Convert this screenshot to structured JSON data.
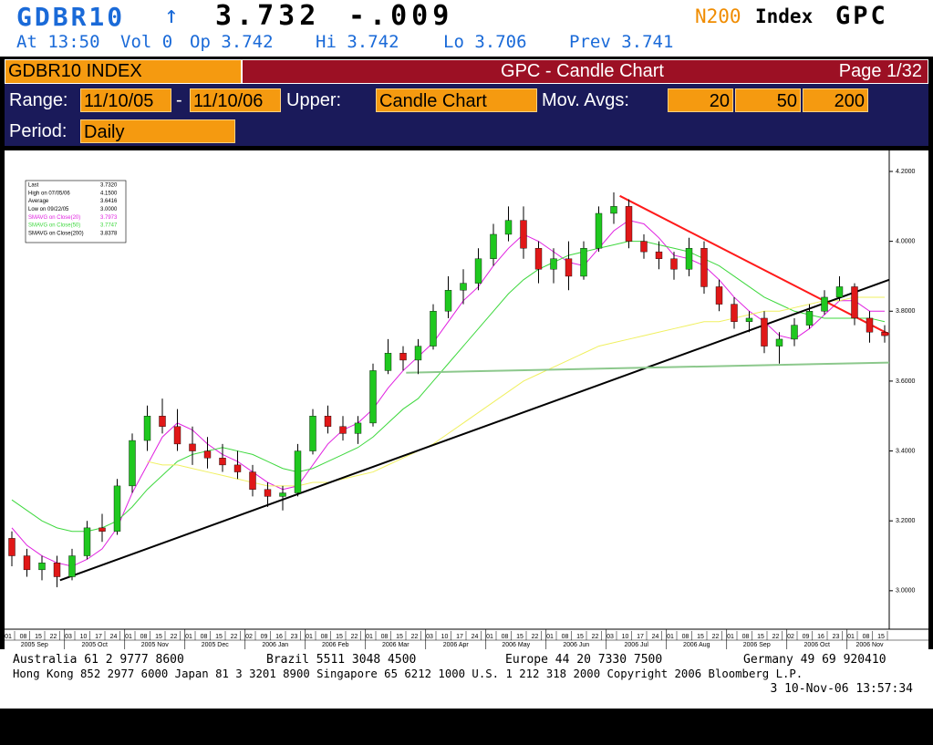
{
  "header": {
    "ticker": "GDBR10",
    "arrow": "↑",
    "price": "3.732",
    "change": "-.009",
    "source": "N200",
    "market": "Index",
    "function": "GPC",
    "quote": [
      "At 13:50",
      "Vol 0",
      "Op 3.742",
      "Hi 3.742",
      "Lo 3.706",
      "Prev 3.741"
    ]
  },
  "titlebar": {
    "security": "GDBR10 INDEX",
    "title": "GPC - Candle Chart",
    "page": "Page 1/32"
  },
  "controls": {
    "range_label": "Range:",
    "start": "11/10/05",
    "dash": "-",
    "end": "11/10/06",
    "upper_label": "Upper:",
    "upper": "Candle Chart",
    "mavg_label": "Mov. Avgs:",
    "mavgs": [
      "20",
      "50",
      "200"
    ],
    "period_label": "Period:",
    "period": "Daily"
  },
  "chart_data": {
    "type": "candlestick",
    "categories": [
      "01",
      "08",
      "15",
      "22",
      "03",
      "10",
      "17",
      "24",
      "01",
      "08",
      "15",
      "22",
      "01",
      "08",
      "15",
      "22",
      "02",
      "09",
      "16",
      "23",
      "01",
      "08",
      "15",
      "22",
      "01",
      "08",
      "15",
      "22",
      "03",
      "10",
      "17",
      "24",
      "01",
      "08",
      "15",
      "22",
      "01",
      "08",
      "15",
      "22",
      "03",
      "10",
      "17",
      "24",
      "01",
      "08",
      "15",
      "22",
      "01",
      "08",
      "15",
      "22",
      "02",
      "09",
      "16",
      "23",
      "01",
      "08",
      "15"
    ],
    "months": [
      "2005 Sep",
      "2005 Oct",
      "2005 Nov",
      "2005 Dec",
      "2006 Jan",
      "2006 Feb",
      "2006 Mar",
      "2006 Apr",
      "2006 May",
      "2006 Jun",
      "2006 Jul",
      "2006 Aug",
      "2006 Sep",
      "2006 Oct",
      "2006 Nov"
    ],
    "open": [
      3.15,
      3.1,
      3.06,
      3.08,
      3.04,
      3.1,
      3.18,
      3.17,
      3.3,
      3.43,
      3.5,
      3.47,
      3.42,
      3.4,
      3.38,
      3.36,
      3.34,
      3.29,
      3.27,
      3.28,
      3.4,
      3.5,
      3.47,
      3.45,
      3.48,
      3.63,
      3.68,
      3.66,
      3.7,
      3.8,
      3.86,
      3.88,
      3.95,
      4.02,
      4.06,
      3.98,
      3.92,
      3.95,
      3.9,
      3.98,
      4.08,
      4.1,
      4.0,
      3.97,
      3.95,
      3.92,
      3.98,
      3.87,
      3.82,
      3.77,
      3.78,
      3.7,
      3.72,
      3.76,
      3.8,
      3.84,
      3.87,
      3.78,
      3.74
    ],
    "high": [
      3.17,
      3.12,
      3.1,
      3.1,
      3.12,
      3.2,
      3.22,
      3.32,
      3.45,
      3.53,
      3.55,
      3.52,
      3.47,
      3.44,
      3.42,
      3.4,
      3.36,
      3.31,
      3.3,
      3.42,
      3.52,
      3.53,
      3.5,
      3.5,
      3.65,
      3.72,
      3.7,
      3.72,
      3.82,
      3.9,
      3.92,
      3.98,
      4.05,
      4.1,
      4.1,
      4.0,
      3.98,
      4.0,
      4.0,
      4.1,
      4.14,
      4.12,
      4.02,
      4.0,
      3.97,
      4.01,
      4.0,
      3.89,
      3.84,
      3.8,
      3.8,
      3.74,
      3.78,
      3.82,
      3.86,
      3.9,
      3.88,
      3.8,
      3.76
    ],
    "low": [
      3.07,
      3.04,
      3.03,
      3.01,
      3.03,
      3.09,
      3.14,
      3.16,
      3.28,
      3.4,
      3.45,
      3.4,
      3.36,
      3.35,
      3.34,
      3.32,
      3.27,
      3.24,
      3.23,
      3.27,
      3.39,
      3.45,
      3.43,
      3.42,
      3.47,
      3.62,
      3.63,
      3.62,
      3.69,
      3.78,
      3.82,
      3.86,
      3.93,
      4.0,
      3.95,
      3.88,
      3.88,
      3.86,
      3.89,
      3.97,
      4.05,
      3.98,
      3.95,
      3.92,
      3.89,
      3.9,
      3.85,
      3.8,
      3.75,
      3.74,
      3.68,
      3.65,
      3.7,
      3.75,
      3.79,
      3.83,
      3.76,
      3.71,
      3.71
    ],
    "close": [
      3.1,
      3.06,
      3.08,
      3.04,
      3.1,
      3.18,
      3.17,
      3.3,
      3.43,
      3.5,
      3.47,
      3.42,
      3.4,
      3.38,
      3.36,
      3.34,
      3.29,
      3.27,
      3.28,
      3.4,
      3.5,
      3.47,
      3.45,
      3.48,
      3.63,
      3.68,
      3.66,
      3.7,
      3.8,
      3.86,
      3.88,
      3.95,
      4.02,
      4.06,
      3.98,
      3.92,
      3.95,
      3.9,
      3.98,
      4.08,
      4.1,
      4.0,
      3.97,
      3.95,
      3.92,
      3.98,
      3.87,
      3.82,
      3.77,
      3.78,
      3.7,
      3.72,
      3.76,
      3.8,
      3.84,
      3.87,
      3.78,
      3.74,
      3.73
    ],
    "up_color": "#1fc81f",
    "down_color": "#e01818",
    "series": [
      {
        "name": "SMAVG on Close(20)",
        "color": "#e020e0",
        "values": [
          3.18,
          3.13,
          3.1,
          3.08,
          3.07,
          3.09,
          3.12,
          3.18,
          3.28,
          3.36,
          3.44,
          3.48,
          3.46,
          3.42,
          3.39,
          3.37,
          3.34,
          3.31,
          3.29,
          3.3,
          3.36,
          3.42,
          3.46,
          3.48,
          3.52,
          3.58,
          3.63,
          3.67,
          3.71,
          3.77,
          3.83,
          3.87,
          3.93,
          3.98,
          4.02,
          4.0,
          3.97,
          3.94,
          3.93,
          3.98,
          4.03,
          4.06,
          4.05,
          4.01,
          3.96,
          3.95,
          3.93,
          3.89,
          3.84,
          3.8,
          3.77,
          3.73,
          3.72,
          3.75,
          3.79,
          3.83,
          3.83,
          3.8,
          3.8
        ]
      },
      {
        "name": "SMAVG on Close(50)",
        "color": "#3ed83e",
        "values": [
          3.26,
          3.23,
          3.2,
          3.18,
          3.17,
          3.17,
          3.18,
          3.2,
          3.24,
          3.29,
          3.33,
          3.37,
          3.39,
          3.4,
          3.41,
          3.4,
          3.39,
          3.37,
          3.35,
          3.34,
          3.35,
          3.37,
          3.39,
          3.41,
          3.44,
          3.48,
          3.52,
          3.55,
          3.6,
          3.65,
          3.7,
          3.75,
          3.8,
          3.85,
          3.89,
          3.92,
          3.94,
          3.96,
          3.97,
          3.98,
          3.99,
          4.0,
          4.0,
          3.99,
          3.98,
          3.97,
          3.95,
          3.93,
          3.9,
          3.87,
          3.84,
          3.82,
          3.8,
          3.79,
          3.78,
          3.78,
          3.78,
          3.78,
          3.77
        ]
      },
      {
        "name": "SMAVG on Close(200)",
        "color": "#f0f060",
        "values": [
          null,
          null,
          null,
          null,
          null,
          null,
          null,
          null,
          null,
          3.37,
          3.36,
          3.36,
          3.35,
          3.34,
          3.33,
          3.32,
          3.31,
          3.3,
          3.3,
          3.3,
          3.31,
          3.31,
          3.32,
          3.33,
          3.34,
          3.36,
          3.38,
          3.4,
          3.42,
          3.45,
          3.48,
          3.51,
          3.54,
          3.57,
          3.6,
          3.62,
          3.64,
          3.66,
          3.68,
          3.7,
          3.71,
          3.72,
          3.73,
          3.74,
          3.75,
          3.76,
          3.77,
          3.77,
          3.78,
          3.79,
          3.8,
          3.8,
          3.81,
          3.82,
          3.83,
          3.83,
          3.84,
          3.84,
          3.84
        ]
      }
    ],
    "lines": [
      {
        "color": "#000000",
        "x": [
          3.2,
          58.3
        ],
        "y": [
          3.03,
          3.89
        ]
      },
      {
        "color": "#ff1a1a",
        "x": [
          40.4,
          58.3
        ],
        "y": [
          4.13,
          3.734
        ]
      },
      {
        "color": "#8cc88c",
        "x": [
          26.2,
          58.3
        ],
        "y": [
          3.624,
          3.653
        ]
      }
    ],
    "stats": [
      [
        "Last",
        "3.7320"
      ],
      [
        "High on  07/05/06",
        "4.1500"
      ],
      [
        "Average",
        "3.6416"
      ],
      [
        "Low on  09/22/05",
        "3.0000"
      ],
      [
        "SMAVG on Close(20)",
        "3.7973"
      ],
      [
        "SMAVG on Close(50)",
        "3.7747"
      ],
      [
        "SMAVG on Close(200)",
        "3.8378"
      ]
    ],
    "ylim": [
      2.89,
      4.26
    ],
    "yticks": [
      {
        "value": 3.0,
        "label": "3.0000"
      },
      {
        "value": 3.2,
        "label": "3.2000"
      },
      {
        "value": 3.4,
        "label": "3.4000"
      },
      {
        "value": 3.6,
        "label": "3.6000"
      },
      {
        "value": 3.8,
        "label": "3.8000"
      },
      {
        "value": 4.0,
        "label": "4.0000"
      },
      {
        "value": 4.2,
        "label": "4.2000"
      }
    ]
  },
  "footer": {
    "line1": [
      "Australia 61 2 9777 8600",
      "Brazil 5511 3048 4500",
      "Europe 44 20 7330 7500",
      "Germany 49 69 920410"
    ],
    "line2": "Hong Kong 852 2977 6000 Japan 81 3 3201 8900 Singapore 65 6212 1000 U.S. 1 212 318 2000 Copyright 2006 Bloomberg L.P.",
    "line3": "3 10-Nov-06 13:57:34"
  }
}
